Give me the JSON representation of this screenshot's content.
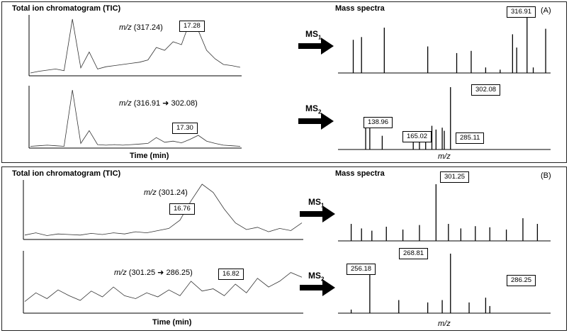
{
  "panel_a": {
    "letter": "(A)",
    "tic_title": "Total ion chromatogram (TIC)",
    "ms_title": "Mass spectra",
    "xlabel_time": "Time (min)",
    "xlabel_mz": "m/z",
    "trace1_label_prefix": "m/z",
    "trace1_label_value": "(317.24)",
    "trace1_callout": "17.28",
    "trace2_label_prefix": "m/z",
    "trace2_label_from": "(316.91",
    "trace2_label_to": "302.08)",
    "trace2_callout": "17.30",
    "ms1_label": "MS",
    "ms1_sub": "1",
    "ms2_label": "MS",
    "ms2_sub": "2",
    "ms1_callouts": [
      "316.91"
    ],
    "ms2_callouts": [
      "138.96",
      "165.02",
      "285.11",
      "302.08"
    ]
  },
  "panel_b": {
    "letter": "(B)",
    "tic_title": "Total ion chromatogram (TIC)",
    "ms_title": "Mass spectra",
    "xlabel_time": "Time (min)",
    "xlabel_mz": "m/z",
    "trace1_label_prefix": "m/z",
    "trace1_label_value": "(301.24)",
    "trace1_callout": "16.76",
    "trace2_label_prefix": "m/z",
    "trace2_label_from": "(301.25",
    "trace2_label_to": "286.25)",
    "trace2_callout": "16.82",
    "ms1_label": "MS",
    "ms1_sub": "1",
    "ms2_label": "MS",
    "ms2_sub": "2",
    "ms1_callouts": [
      "301.25"
    ],
    "ms2_callouts": [
      "256.18",
      "268.81",
      "286.25"
    ]
  },
  "chart_data": [
    {
      "type": "line",
      "panel": "A",
      "description_key": "TIC m/z 317.24",
      "x": [
        0,
        1,
        2,
        3,
        4,
        5,
        6,
        7,
        8,
        9,
        10,
        11,
        12,
        13,
        14,
        15,
        16,
        17,
        18,
        19,
        20,
        21,
        22,
        23,
        24,
        25
      ],
      "y": [
        5,
        8,
        10,
        12,
        9,
        100,
        14,
        42,
        12,
        16,
        18,
        20,
        22,
        24,
        28,
        50,
        45,
        60,
        55,
        96,
        80,
        45,
        30,
        20,
        18,
        15
      ]
    },
    {
      "type": "line",
      "panel": "A",
      "description_key": "TIC m/z 316.91 -> 302.08",
      "x": [
        0,
        1,
        2,
        3,
        4,
        5,
        6,
        7,
        8,
        9,
        10,
        11,
        12,
        13,
        14,
        15,
        16,
        17,
        18,
        19,
        20,
        21,
        22,
        23,
        24,
        25
      ],
      "y": [
        3,
        4,
        5,
        4,
        3,
        100,
        8,
        30,
        6,
        5,
        6,
        5,
        6,
        7,
        8,
        18,
        10,
        12,
        9,
        15,
        22,
        12,
        8,
        5,
        4,
        3
      ]
    },
    {
      "type": "bar",
      "panel": "A",
      "description_key": "MS1",
      "x": [
        0.06,
        0.1,
        0.21,
        0.42,
        0.56,
        0.63,
        0.7,
        0.77,
        0.83,
        0.85,
        0.9,
        0.93,
        0.99
      ],
      "values": [
        60,
        65,
        82,
        48,
        36,
        40,
        10,
        6,
        70,
        46,
        100,
        10,
        80
      ]
    },
    {
      "type": "bar",
      "panel": "A",
      "description_key": "MS2",
      "x": [
        0.12,
        0.14,
        0.2,
        0.35,
        0.38,
        0.41,
        0.44,
        0.46,
        0.49,
        0.5,
        0.53
      ],
      "values": [
        35,
        34,
        22,
        28,
        26,
        20,
        38,
        32,
        35,
        30,
        100
      ]
    },
    {
      "type": "line",
      "panel": "B",
      "description_key": "TIC m/z 301.24",
      "x": [
        0,
        1,
        2,
        3,
        4,
        5,
        6,
        7,
        8,
        9,
        10,
        11,
        12,
        13,
        14,
        15,
        16,
        17,
        18,
        19,
        20,
        21,
        22,
        23,
        24,
        25
      ],
      "y": [
        8,
        12,
        7,
        10,
        9,
        8,
        11,
        9,
        12,
        10,
        14,
        12,
        16,
        20,
        35,
        70,
        100,
        85,
        55,
        30,
        18,
        22,
        14,
        20,
        16,
        30
      ]
    },
    {
      "type": "line",
      "panel": "B",
      "description_key": "TIC m/z 301.25 -> 286.25",
      "x": [
        0,
        1,
        2,
        3,
        4,
        5,
        6,
        7,
        8,
        9,
        10,
        11,
        12,
        13,
        14,
        15,
        16,
        17,
        18,
        19,
        20,
        21,
        22,
        23,
        24,
        25
      ],
      "y": [
        20,
        35,
        25,
        40,
        30,
        22,
        38,
        28,
        45,
        30,
        25,
        35,
        28,
        40,
        30,
        55,
        38,
        42,
        30,
        50,
        35,
        60,
        45,
        55,
        70,
        62
      ]
    },
    {
      "type": "bar",
      "panel": "B",
      "description_key": "MS1",
      "x": [
        0.05,
        0.1,
        0.15,
        0.22,
        0.3,
        0.38,
        0.46,
        0.52,
        0.58,
        0.65,
        0.72,
        0.8,
        0.88,
        0.95
      ],
      "values": [
        30,
        22,
        18,
        25,
        20,
        28,
        100,
        30,
        22,
        26,
        24,
        20,
        40,
        30
      ]
    },
    {
      "type": "bar",
      "panel": "B",
      "description_key": "MS2",
      "x": [
        0.05,
        0.14,
        0.28,
        0.42,
        0.49,
        0.53,
        0.62,
        0.7,
        0.72
      ],
      "values": [
        6,
        78,
        22,
        18,
        22,
        100,
        18,
        26,
        12
      ]
    }
  ]
}
